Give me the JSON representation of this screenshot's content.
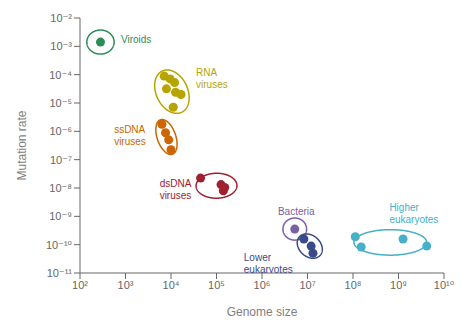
{
  "chart_data": {
    "type": "scatter",
    "xlabel": "Genome size",
    "ylabel": "Mutation rate",
    "log": true,
    "grid": false,
    "xlim": [
      100,
      10000000000
    ],
    "ylim": [
      1e-11,
      0.01
    ],
    "xticks": [
      {
        "value": 100,
        "label": "10²"
      },
      {
        "value": 1000,
        "label": "10³"
      },
      {
        "value": 10000,
        "label": "10⁴"
      },
      {
        "value": 100000,
        "label": "10⁵"
      },
      {
        "value": 1000000,
        "label": "10⁶"
      },
      {
        "value": 10000000,
        "label": "10⁷"
      },
      {
        "value": 100000000,
        "label": "10⁸"
      },
      {
        "value": 1000000000,
        "label": "10⁹"
      },
      {
        "value": 10000000000,
        "label": "10¹⁰"
      }
    ],
    "yticks": [
      {
        "value": 1e-11,
        "label": "10⁻¹¹"
      },
      {
        "value": 1e-10,
        "label": "10⁻¹⁰"
      },
      {
        "value": 1e-09,
        "label": "10⁻⁹"
      },
      {
        "value": 1e-08,
        "label": "10⁻⁸"
      },
      {
        "value": 1e-07,
        "label": "10⁻⁷"
      },
      {
        "value": 1e-06,
        "label": "10⁻⁶"
      },
      {
        "value": 1e-05,
        "label": "10⁻⁵"
      },
      {
        "value": 0.0001,
        "label": "10⁻⁴"
      },
      {
        "value": 0.001,
        "label": "10⁻³"
      },
      {
        "value": 0.01,
        "label": "10⁻²"
      }
    ],
    "series": [
      {
        "name": "Viroids",
        "color": "#2e8b57",
        "x": [
          281.8383
        ],
        "y": [
          0.001412538
        ],
        "ellipse": {
          "x": 281.8383,
          "y": 0.001412538,
          "width_log": 0.6,
          "height_log": 0.85,
          "angle": 0
        }
      },
      {
        "name": "RNA\nviruses",
        "color": "#b8a400",
        "x": [
          7079.458,
          9549.926,
          12022.64,
          7943.282,
          12589.25,
          16595.87,
          11220.18
        ],
        "y": [
          8.912509e-05,
          7.079458e-05,
          5.248075e-05,
          3.162278e-05,
          2.398833e-05,
          1.995262e-05,
          7.079458e-06
        ],
        "ellipse": {
          "x": 10471.29,
          "y": 2.511886e-05,
          "width_log": 0.72,
          "height_log": 1.55,
          "angle": 10
        }
      },
      {
        "name": "ssDNA\nviruses",
        "color": "#cc6600",
        "x": [
          6309.573,
          7585.776,
          8912.509,
          10000
        ],
        "y": [
          1.778279e-06,
          8.912509e-07,
          5.011872e-07,
          2.238721e-07
        ],
        "ellipse": {
          "x": 7943.282,
          "y": 6.309573e-07,
          "width_log": 0.42,
          "height_log": 1.25,
          "angle": 10
        }
      },
      {
        "name": "dsDNA\nviruses",
        "color": "#a02030",
        "x": [
          44668.36,
          125892.5,
          151356.1,
          141253.8
        ],
        "y": [
          2.238721e-08,
          1.318257e-08,
          1.047129e-08,
          7.943282e-09
        ],
        "ellipse": {
          "x": 100000,
          "y": 1.202264e-08,
          "width_log": 0.9,
          "height_log": 0.88,
          "angle": 15
        }
      },
      {
        "name": "Bacteria",
        "color": "#7b5ea7",
        "x": [
          5248075
        ],
        "y": [
          3.548134e-10
        ],
        "ellipse": {
          "x": 5248075,
          "y": 3.548134e-10,
          "width_log": 0.52,
          "height_log": 0.78,
          "angle": 0
        }
      },
      {
        "name": "Lower\neukaryotes",
        "color": "#3a4a8a",
        "x": [
          8317638,
          12022644,
          13182567
        ],
        "y": [
          1.584893e-10,
          8.912509e-11,
          5.011872e-11
        ],
        "ellipse": {
          "x": 11220185,
          "y": 8.912509e-11,
          "width_log": 0.52,
          "height_log": 0.88,
          "angle": 15
        }
      },
      {
        "name": "Higher\neukaryotes",
        "color": "#45b0c8",
        "x": [
          112201845,
          151356125,
          1258925412,
          4168693835
        ],
        "y": [
          1.905461e-10,
          8.317638e-11,
          1.584893e-10,
          8.912509e-11
        ],
        "ellipse": {
          "x": 660693448,
          "y": 1.202264e-10,
          "width_log": 1.6,
          "height_log": 0.9,
          "angle": 0
        }
      }
    ]
  }
}
